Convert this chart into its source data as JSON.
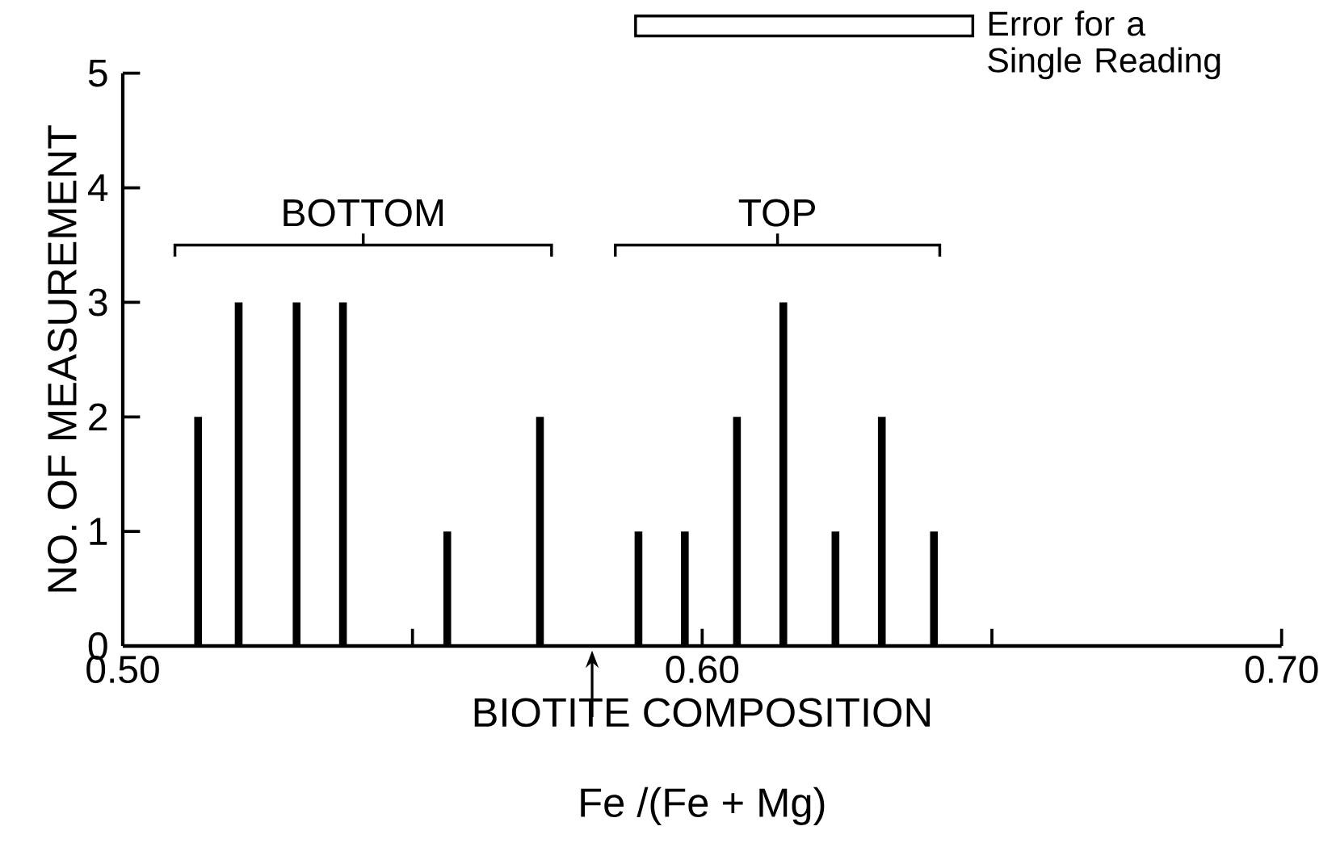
{
  "chart_data": {
    "type": "bar",
    "xlabel": "BIOTITE   COMPOSITION",
    "ylabel": "NO. OF MEASUREMENT",
    "x": [
      0.513,
      0.52,
      0.53,
      0.538,
      0.556,
      0.572,
      0.589,
      0.597,
      0.606,
      0.614,
      0.623,
      0.631,
      0.64
    ],
    "values": [
      2,
      3,
      3,
      3,
      1,
      2,
      1,
      1,
      2,
      3,
      1,
      2,
      1
    ],
    "color": "#000000",
    "xlim": [
      0.5,
      0.7
    ],
    "xticks": [
      {
        "value": 0.5,
        "label": "0.50"
      },
      {
        "value": 0.55,
        "label": null
      },
      {
        "value": 0.6,
        "label": "0.60"
      },
      {
        "value": 0.65,
        "label": null
      },
      {
        "value": 0.7,
        "label": "0.70"
      }
    ],
    "ylim": [
      0,
      5
    ],
    "yticks": [
      0,
      1,
      2,
      3,
      4,
      5
    ],
    "annotations": [
      "Fe /(Fe + Mg)",
      "Error for a Single Reading",
      "BOTTOM",
      "TOP"
    ]
  }
}
